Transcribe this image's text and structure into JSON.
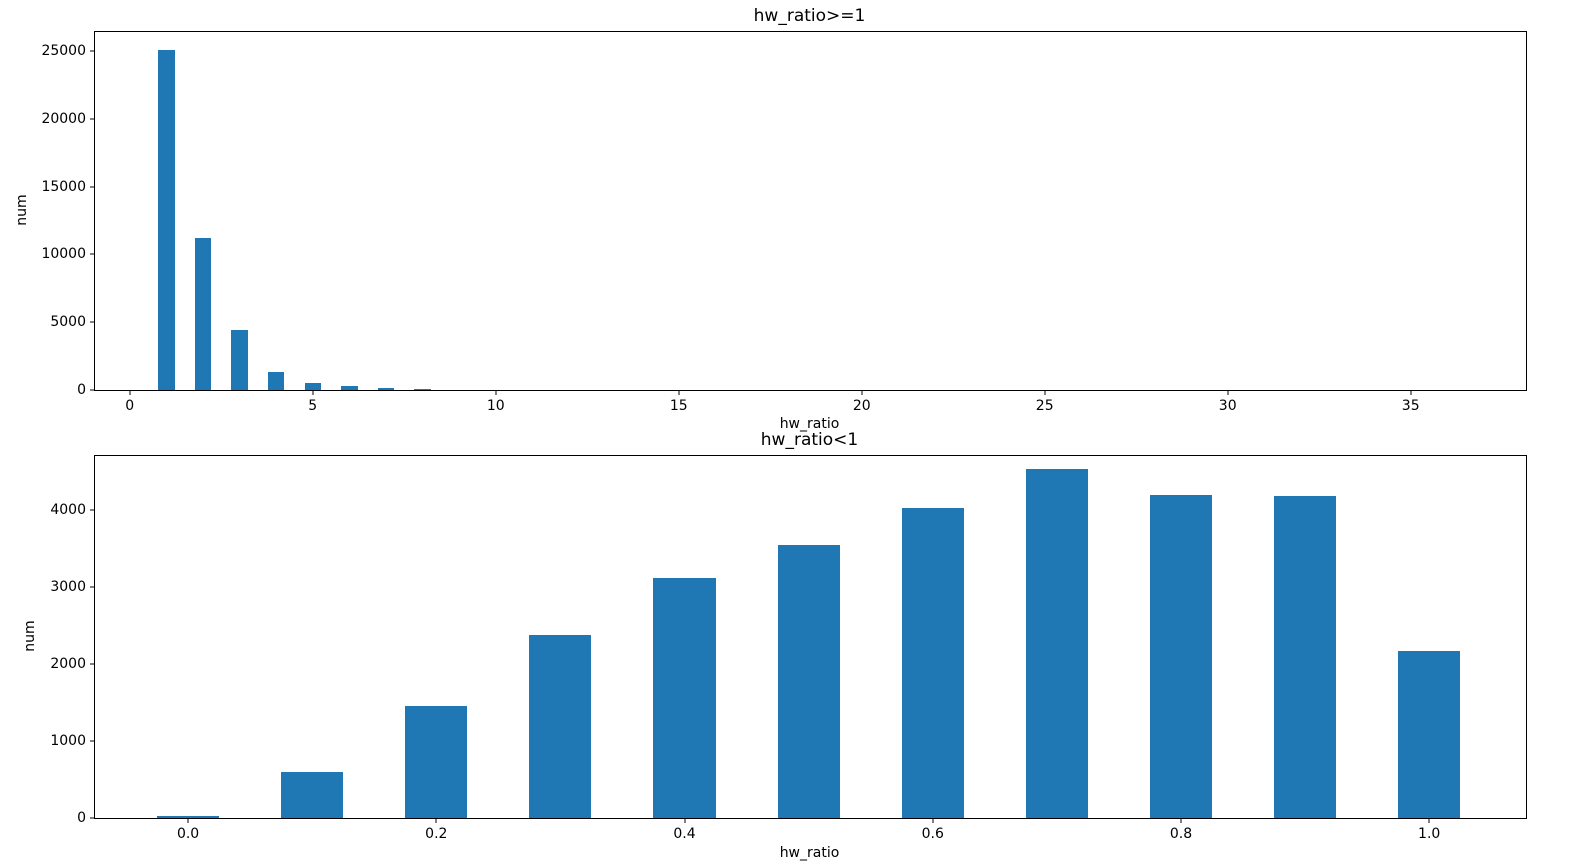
{
  "figure": {
    "background": "#ffffff"
  },
  "chart_data": [
    {
      "type": "bar",
      "title": "hw_ratio>=1",
      "xlabel": "hw_ratio",
      "ylabel": "num",
      "x": [
        1,
        2,
        3,
        4,
        5,
        6,
        7,
        8
      ],
      "values": [
        25100,
        11200,
        4400,
        1350,
        550,
        260,
        140,
        70
      ],
      "bar_width": 0.45,
      "bar_color": "#1f77b4",
      "xlim": [
        -0.95,
        38.15
      ],
      "ylim": [
        0,
        26400
      ],
      "xticks": [
        0,
        5,
        10,
        15,
        20,
        25,
        30,
        35
      ],
      "xtick_labels": [
        "0",
        "5",
        "10",
        "15",
        "20",
        "25",
        "30",
        "35"
      ],
      "yticks": [
        0,
        5000,
        10000,
        15000,
        20000,
        25000
      ],
      "ytick_labels": [
        "0",
        "5000",
        "10000",
        "15000",
        "20000",
        "25000"
      ],
      "grid": false,
      "legend": "none"
    },
    {
      "type": "bar",
      "title": "hw_ratio<1",
      "xlabel": "hw_ratio",
      "ylabel": "num",
      "x": [
        0.0,
        0.1,
        0.2,
        0.3,
        0.4,
        0.5,
        0.6,
        0.7,
        0.8,
        0.9,
        1.0
      ],
      "values": [
        20,
        600,
        1450,
        2380,
        3120,
        3540,
        4020,
        4530,
        4200,
        4180,
        2170
      ],
      "bar_width": 0.05,
      "bar_color": "#1f77b4",
      "xlim": [
        -0.075,
        1.078
      ],
      "ylim": [
        0,
        4700
      ],
      "xticks": [
        0.0,
        0.2,
        0.4,
        0.6,
        0.8,
        1.0
      ],
      "xtick_labels": [
        "0.0",
        "0.2",
        "0.4",
        "0.6",
        "0.8",
        "1.0"
      ],
      "yticks": [
        0,
        1000,
        2000,
        3000,
        4000
      ],
      "ytick_labels": [
        "0",
        "1000",
        "2000",
        "3000",
        "4000"
      ],
      "grid": false,
      "legend": "none"
    }
  ]
}
